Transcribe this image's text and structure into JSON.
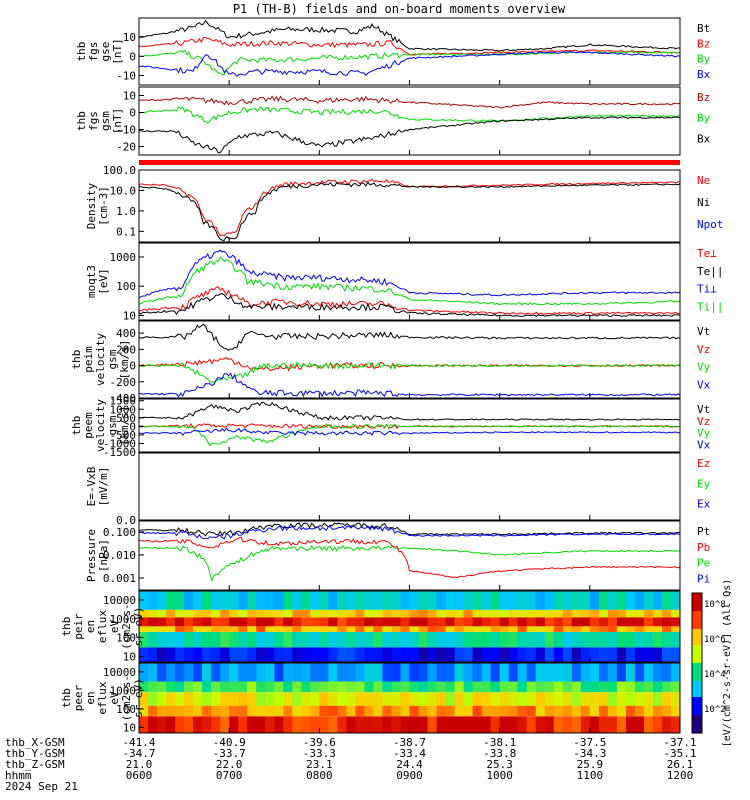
{
  "title": "P1 (TH-B) fields and on-board moments overview",
  "colors": {
    "black": "#000000",
    "red": "#ff0000",
    "darkred": "#b00000",
    "green": "#00dd00",
    "blue": "#0000ff"
  },
  "time_axis": {
    "start": "06:00",
    "end": "12:00",
    "range_hours": [
      6,
      12
    ],
    "date": "2024 Sep 21"
  },
  "chart_data": [
    {
      "type": "line",
      "ylabel": [
        "thb",
        "fgs",
        "gse",
        "[nT]"
      ],
      "ylim": [
        -15,
        20
      ],
      "yticks": [
        "10",
        "0",
        "-10"
      ],
      "legend": [
        "Bt",
        "Bz",
        "By",
        "Bx"
      ],
      "legend_colors": [
        "#000000",
        "#ff0000",
        "#00dd00",
        "#0000ff"
      ],
      "series": [
        {
          "name": "Bt",
          "color": "#000000",
          "t": [
            6,
            6.3,
            6.6,
            6.75,
            7.0,
            7.3,
            7.6,
            7.9,
            8.4,
            8.6,
            9.0,
            10,
            10.5,
            11,
            11.5,
            12
          ],
          "values": [
            10,
            12,
            15,
            18,
            10,
            12,
            14,
            14,
            13,
            16,
            4,
            3,
            4,
            6,
            5,
            4
          ]
        },
        {
          "name": "Bz",
          "color": "#ff0000",
          "t": [
            6,
            6.5,
            6.75,
            7.0,
            7.5,
            8,
            8.5,
            8.8,
            9,
            10,
            11,
            12
          ],
          "values": [
            5,
            7,
            9,
            6,
            7,
            6,
            6,
            7,
            1,
            2,
            3,
            2
          ]
        },
        {
          "name": "By",
          "color": "#00dd00",
          "t": [
            6,
            6.5,
            6.7,
            6.9,
            7.1,
            7.5,
            8,
            8.6,
            9,
            10,
            11,
            12
          ],
          "values": [
            0,
            2,
            -2,
            -10,
            -2,
            -2,
            -1,
            0,
            1,
            1,
            2,
            2
          ]
        },
        {
          "name": "Bx",
          "color": "#0000ff",
          "t": [
            6,
            6.4,
            6.6,
            6.75,
            7.0,
            7.3,
            7.6,
            8,
            8.5,
            8.7,
            9,
            10,
            10.5,
            11,
            12
          ],
          "values": [
            -5,
            -7,
            -8,
            2,
            -10,
            -8,
            -8,
            -8,
            -9,
            -6,
            -1,
            1,
            2,
            2,
            0
          ]
        }
      ]
    },
    {
      "type": "line",
      "ylabel": [
        "thb",
        "fgs",
        "gsm",
        "[nT]"
      ],
      "ylim": [
        -25,
        15
      ],
      "yticks": [
        "10",
        "0",
        "-10",
        "-20"
      ],
      "legend": [
        "Bz",
        "By",
        "Bx"
      ],
      "legend_colors": [
        "#b00000",
        "#00dd00",
        "#000000"
      ],
      "series": [
        {
          "name": "Bz",
          "color": "#b00000",
          "t": [
            6,
            6.5,
            7,
            7.5,
            8,
            8.5,
            9,
            10,
            10.5,
            11,
            12
          ],
          "values": [
            7,
            8,
            6,
            8,
            7,
            8,
            6,
            3,
            6,
            5,
            5
          ]
        },
        {
          "name": "By",
          "color": "#00dd00",
          "t": [
            6,
            6.5,
            6.75,
            7,
            7.3,
            8,
            8.7,
            9,
            10,
            11,
            12
          ],
          "values": [
            0,
            2,
            -5,
            0,
            2,
            0,
            1,
            -4,
            -5,
            -2,
            -2
          ]
        },
        {
          "name": "Bx",
          "color": "#000000",
          "t": [
            6,
            6.4,
            6.6,
            6.9,
            7.1,
            7.5,
            8,
            8.6,
            9,
            10,
            11,
            12
          ],
          "values": [
            -11,
            -11,
            -18,
            -23,
            -14,
            -12,
            -20,
            -15,
            -10,
            -5,
            -3,
            -3
          ]
        }
      ]
    },
    {
      "type": "line",
      "log": true,
      "ylabel": [
        "Density",
        "[cm-3]"
      ],
      "ylim": [
        0.03,
        100
      ],
      "yticks": [
        "100.0",
        "10.0",
        "1.0",
        "0.1"
      ],
      "legend": [
        "Ne",
        "Ni",
        "Npot"
      ],
      "legend_colors": [
        "#ff0000",
        "#000000",
        "#0000ff"
      ],
      "series": [
        {
          "name": "Ne",
          "color": "#ff0000",
          "t": [
            6,
            6.3,
            6.5,
            6.7,
            6.9,
            7.1,
            7.3,
            7.6,
            8,
            8.7,
            9,
            10,
            11,
            12
          ],
          "values": [
            20,
            18,
            8,
            0.5,
            0.05,
            0.1,
            2,
            20,
            25,
            30,
            15,
            18,
            22,
            25
          ]
        },
        {
          "name": "Ni",
          "color": "#000000",
          "t": [
            6,
            6.3,
            6.5,
            6.7,
            6.9,
            7.1,
            7.3,
            7.6,
            8,
            8.7,
            9,
            10,
            11,
            12
          ],
          "values": [
            15,
            12,
            5,
            0.3,
            0.04,
            0.06,
            1,
            15,
            20,
            20,
            15,
            15,
            18,
            20
          ]
        }
      ]
    },
    {
      "type": "line",
      "log": true,
      "ylabel": [
        "moqt3",
        "[eV]"
      ],
      "ylim": [
        7,
        3000
      ],
      "yticks": [
        "1000",
        "100",
        "10"
      ],
      "legend": [
        "Te⊥",
        "Te||",
        "Ti⊥",
        "Ti||"
      ],
      "legend_colors": [
        "#ff0000",
        "#000000",
        "#0000ff",
        "#00dd00"
      ],
      "series": [
        {
          "name": "Ti⊥",
          "color": "#0000ff",
          "t": [
            6,
            6.5,
            6.9,
            7.2,
            7.6,
            8,
            8.7,
            9,
            10,
            11,
            12
          ],
          "values": [
            40,
            100,
            1500,
            300,
            200,
            200,
            150,
            60,
            50,
            60,
            60
          ]
        },
        {
          "name": "Ti||",
          "color": "#00dd00",
          "t": [
            6,
            6.5,
            6.9,
            7.2,
            7.6,
            8,
            8.7,
            9,
            10,
            11,
            12
          ],
          "values": [
            25,
            50,
            800,
            150,
            100,
            100,
            80,
            35,
            25,
            25,
            30
          ]
        },
        {
          "name": "Te⊥",
          "color": "#ff0000",
          "t": [
            6,
            6.5,
            6.9,
            7.2,
            7.6,
            8,
            8.7,
            9,
            10,
            11,
            12
          ],
          "values": [
            15,
            20,
            80,
            25,
            30,
            25,
            25,
            15,
            12,
            12,
            12
          ]
        },
        {
          "name": "Te||",
          "color": "#000000",
          "t": [
            6,
            6.5,
            6.9,
            7.2,
            7.6,
            8,
            8.7,
            9,
            10,
            11,
            12
          ],
          "values": [
            12,
            15,
            50,
            20,
            20,
            20,
            20,
            12,
            10,
            10,
            10
          ]
        }
      ]
    },
    {
      "type": "line",
      "ylabel": [
        "thb",
        "peim",
        "velocity",
        "gsm",
        "[km/s]"
      ],
      "ylim": [
        -400,
        550
      ],
      "yticks": [
        "400",
        "200",
        "0",
        "-200",
        "-400"
      ],
      "legend": [
        "Vt",
        "Vz",
        "Vy",
        "Vx"
      ],
      "legend_colors": [
        "#000000",
        "#ff0000",
        "#00dd00",
        "#0000ff"
      ],
      "series": [
        {
          "name": "Vt",
          "color": "#000000",
          "t": [
            6,
            6.5,
            6.7,
            7,
            7.2,
            7.5,
            8,
            8.7,
            9,
            10,
            11,
            12
          ],
          "values": [
            350,
            350,
            500,
            150,
            400,
            360,
            360,
            380,
            350,
            340,
            340,
            340
          ]
        },
        {
          "name": "Vz",
          "color": "#ff0000",
          "t": [
            6,
            6.5,
            7,
            7.3,
            8,
            9,
            10,
            11,
            12
          ],
          "values": [
            0,
            20,
            80,
            -50,
            0,
            0,
            0,
            0,
            0
          ]
        },
        {
          "name": "Vy",
          "color": "#00dd00",
          "t": [
            6,
            6.5,
            6.8,
            7.1,
            7.4,
            8,
            9,
            10,
            11,
            12
          ],
          "values": [
            0,
            0,
            -200,
            -150,
            0,
            0,
            0,
            0,
            0,
            0
          ]
        },
        {
          "name": "Vx",
          "color": "#0000ff",
          "t": [
            6,
            6.5,
            6.75,
            7,
            7.3,
            8,
            8.7,
            9,
            10,
            11,
            12
          ],
          "values": [
            -350,
            -350,
            -250,
            -100,
            -340,
            -340,
            -340,
            -360,
            -360,
            -360,
            -360
          ]
        }
      ]
    },
    {
      "type": "line",
      "ylabel": [
        "thb",
        "peem",
        "velocity",
        "gsm",
        "[km/s]"
      ],
      "ylim": [
        -1500,
        1600
      ],
      "yticks": [
        "1500",
        "1000",
        "500",
        "0",
        "-500",
        "-1000",
        "-1500"
      ],
      "legend": [
        "Vt",
        "Vz",
        "Vy",
        "Vx"
      ],
      "legend_colors": [
        "#000000",
        "#ff0000",
        "#00dd00",
        "#0000ff"
      ],
      "series": [
        {
          "name": "Vt",
          "color": "#000000",
          "t": [
            6,
            6.5,
            6.8,
            7.1,
            7.4,
            8,
            8.7,
            9,
            10,
            11,
            12
          ],
          "values": [
            500,
            500,
            1200,
            900,
            1400,
            500,
            500,
            400,
            400,
            400,
            400
          ]
        },
        {
          "name": "Vz",
          "color": "#ff0000",
          "t": [
            6,
            7,
            8,
            9,
            10,
            11,
            12
          ],
          "values": [
            0,
            50,
            0,
            0,
            0,
            0,
            0
          ]
        },
        {
          "name": "Vy",
          "color": "#00dd00",
          "t": [
            6,
            6.6,
            6.8,
            7.1,
            7.4,
            8,
            9,
            10,
            11,
            12
          ],
          "values": [
            0,
            0,
            -1100,
            -600,
            -900,
            0,
            0,
            0,
            0,
            0
          ]
        },
        {
          "name": "Vx",
          "color": "#0000ff",
          "t": [
            6,
            6.5,
            7,
            7.5,
            8,
            8.7,
            9,
            10,
            11,
            12
          ],
          "values": [
            -400,
            -400,
            -200,
            -400,
            -400,
            -400,
            -400,
            -350,
            -350,
            -350
          ]
        }
      ]
    },
    {
      "type": "line",
      "ylabel": [
        "E=-VxB",
        "[mV/m]"
      ],
      "ylim": [
        0,
        1
      ],
      "yticks": [
        "0.0"
      ],
      "legend": [
        "Ez",
        "Ey",
        "Ex"
      ],
      "legend_colors": [
        "#ff0000",
        "#00dd00",
        "#0000ff"
      ],
      "series": []
    },
    {
      "type": "line",
      "log": true,
      "ylabel": [
        "Pressure",
        "[nPa]"
      ],
      "ylim": [
        0.0003,
        0.3
      ],
      "yticks": [
        "0.100",
        "0.010",
        "0.001"
      ],
      "legend": [
        "Pt",
        "Pb",
        "Pe",
        "Pi"
      ],
      "legend_colors": [
        "#000000",
        "#ff0000",
        "#00dd00",
        "#0000ff"
      ],
      "series": [
        {
          "name": "Pt",
          "color": "#000000",
          "t": [
            6,
            6.5,
            6.8,
            7.1,
            7.5,
            8,
            8.7,
            9,
            10,
            11,
            12
          ],
          "values": [
            0.12,
            0.12,
            0.08,
            0.1,
            0.2,
            0.2,
            0.2,
            0.08,
            0.08,
            0.09,
            0.09
          ]
        },
        {
          "name": "Pi",
          "color": "#0000ff",
          "t": [
            6,
            6.5,
            6.8,
            7.1,
            7.5,
            8,
            8.7,
            9,
            10,
            11,
            12
          ],
          "values": [
            0.09,
            0.09,
            0.05,
            0.08,
            0.15,
            0.15,
            0.15,
            0.07,
            0.07,
            0.08,
            0.08
          ]
        },
        {
          "name": "Pe",
          "color": "#00dd00",
          "t": [
            6,
            6.5,
            6.8,
            7.1,
            7.5,
            8,
            8.7,
            9,
            10,
            11,
            12
          ],
          "values": [
            0.02,
            0.02,
            0.0008,
            0.005,
            0.02,
            0.02,
            0.02,
            0.02,
            0.01,
            0.015,
            0.015
          ]
        },
        {
          "name": "Pb",
          "color": "#ff0000",
          "t": [
            6,
            6.5,
            6.8,
            7.1,
            7.5,
            8,
            8.7,
            9,
            9.5,
            10,
            11,
            12
          ],
          "values": [
            0.04,
            0.04,
            0.02,
            0.05,
            0.03,
            0.04,
            0.04,
            0.002,
            0.001,
            0.002,
            0.003,
            0.003
          ]
        }
      ]
    },
    {
      "type": "heatmap",
      "ylabel": [
        "thb",
        "peir",
        "en",
        "eflux",
        "eV",
        "(cm2-s-",
        "sr-eV)"
      ],
      "ylim": [
        5,
        30000
      ],
      "yticks": [
        "10000",
        "1000",
        "100",
        "10"
      ],
      "bands": [
        {
          "y": [
            5,
            30
          ],
          "cval": 0.15
        },
        {
          "y": [
            30,
            200
          ],
          "cval": 0.45
        },
        {
          "y": [
            200,
            400
          ],
          "cval": 0.8
        },
        {
          "y": [
            400,
            1200
          ],
          "cval": 0.97
        },
        {
          "y": [
            1200,
            3000
          ],
          "cval": 0.75
        },
        {
          "y": [
            3000,
            30000
          ],
          "cval": 0.4
        }
      ]
    },
    {
      "type": "heatmap",
      "ylabel": [
        "thb",
        "peer",
        "en",
        "eflux",
        "eV",
        "(cm2-s-",
        "sr-eV)"
      ],
      "ylim": [
        5,
        30000
      ],
      "yticks": [
        "10000",
        "1000",
        "100",
        "10"
      ],
      "bands": [
        {
          "y": [
            5,
            40
          ],
          "cval": 0.95
        },
        {
          "y": [
            40,
            150
          ],
          "cval": 0.82
        },
        {
          "y": [
            150,
            800
          ],
          "cval": 0.7
        },
        {
          "y": [
            800,
            3000
          ],
          "cval": 0.55
        },
        {
          "y": [
            3000,
            30000
          ],
          "cval": 0.3
        }
      ]
    }
  ],
  "colorbar": {
    "ticks": [
      "10^8",
      "10^6",
      "10^4",
      "10^2"
    ],
    "label": "[eV/(cm^2-s-sr-eV)] (All Qs)"
  },
  "xaxis": {
    "rows": [
      {
        "label": "thb_X-GSM",
        "values": [
          "-41.4",
          "-40.9",
          "-39.6",
          "-38.7",
          "-38.1",
          "-37.5",
          "-37.1"
        ]
      },
      {
        "label": "thb_Y-GSM",
        "values": [
          "-34.7",
          "-33.7",
          "-33.3",
          "-33.4",
          "-33.8",
          "-34.3",
          "-35.1"
        ]
      },
      {
        "label": "thb_Z-GSM",
        "values": [
          "21.0",
          "22.0",
          "23.1",
          "24.4",
          "25.3",
          "25.9",
          "26.1"
        ]
      },
      {
        "label": "hhmm",
        "values": [
          "0600",
          "0700",
          "0800",
          "0900",
          "1000",
          "1100",
          "1200"
        ]
      }
    ],
    "date": "2024 Sep 21"
  }
}
